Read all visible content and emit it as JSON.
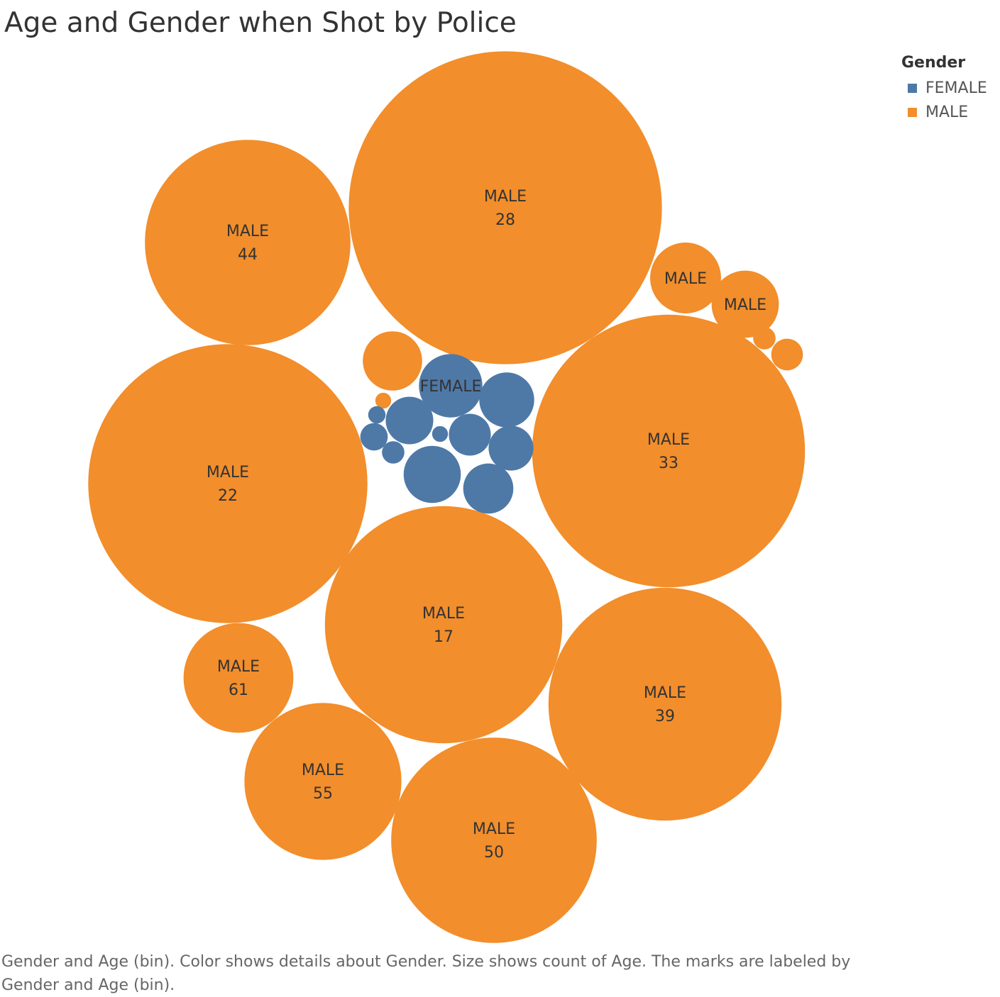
{
  "title": "Age and Gender when Shot by Police",
  "legend": {
    "title": "Gender",
    "items": [
      {
        "label": "FEMALE",
        "color": "#4e79a7"
      },
      {
        "label": "MALE",
        "color": "#f28e2b"
      }
    ]
  },
  "caption": "Gender and Age (bin).  Color shows details about Gender.  Size shows count of Age.  The marks are labeled by Gender and Age (bin).",
  "chart_data": {
    "type": "packed-bubble",
    "size_measure": "count of Age",
    "color_measure": "Gender",
    "bubbles": [
      {
        "gender": "MALE",
        "age_bin": "28",
        "count": 195
      },
      {
        "gender": "MALE",
        "age_bin": "22",
        "count": 155
      },
      {
        "gender": "MALE",
        "age_bin": "33",
        "count": 148
      },
      {
        "gender": "MALE",
        "age_bin": "39",
        "count": 108
      },
      {
        "gender": "MALE",
        "age_bin": "17",
        "count": 112
      },
      {
        "gender": "MALE",
        "age_bin": "44",
        "count": 84
      },
      {
        "gender": "MALE",
        "age_bin": "50",
        "count": 84
      },
      {
        "gender": "MALE",
        "age_bin": "55",
        "count": 49
      },
      {
        "gender": "MALE",
        "age_bin": "61",
        "count": 24
      },
      {
        "gender": "MALE",
        "age_bin": "",
        "count": 10
      },
      {
        "gender": "MALE",
        "age_bin": "",
        "count": 9
      },
      {
        "gender": "MALE",
        "age_bin": "",
        "count": 7
      },
      {
        "gender": "MALE",
        "age_bin": "",
        "count": 2
      },
      {
        "gender": "MALE",
        "age_bin": "",
        "count": 1
      },
      {
        "gender": "MALE",
        "age_bin": "",
        "count": 0.5
      },
      {
        "gender": "FEMALE",
        "age_bin": "",
        "count": 8
      },
      {
        "gender": "FEMALE",
        "age_bin": "",
        "count": 6.5
      },
      {
        "gender": "FEMALE",
        "age_bin": "",
        "count": 6
      },
      {
        "gender": "FEMALE",
        "age_bin": "",
        "count": 5
      },
      {
        "gender": "FEMALE",
        "age_bin": "",
        "count": 4.5
      },
      {
        "gender": "FEMALE",
        "age_bin": "",
        "count": 4
      },
      {
        "gender": "FEMALE",
        "age_bin": "",
        "count": 3.5
      },
      {
        "gender": "FEMALE",
        "age_bin": "",
        "count": 1.5
      },
      {
        "gender": "FEMALE",
        "age_bin": "",
        "count": 1
      },
      {
        "gender": "FEMALE",
        "age_bin": "",
        "count": 0.6
      },
      {
        "gender": "FEMALE",
        "age_bin": "",
        "count": 0.5
      }
    ]
  }
}
